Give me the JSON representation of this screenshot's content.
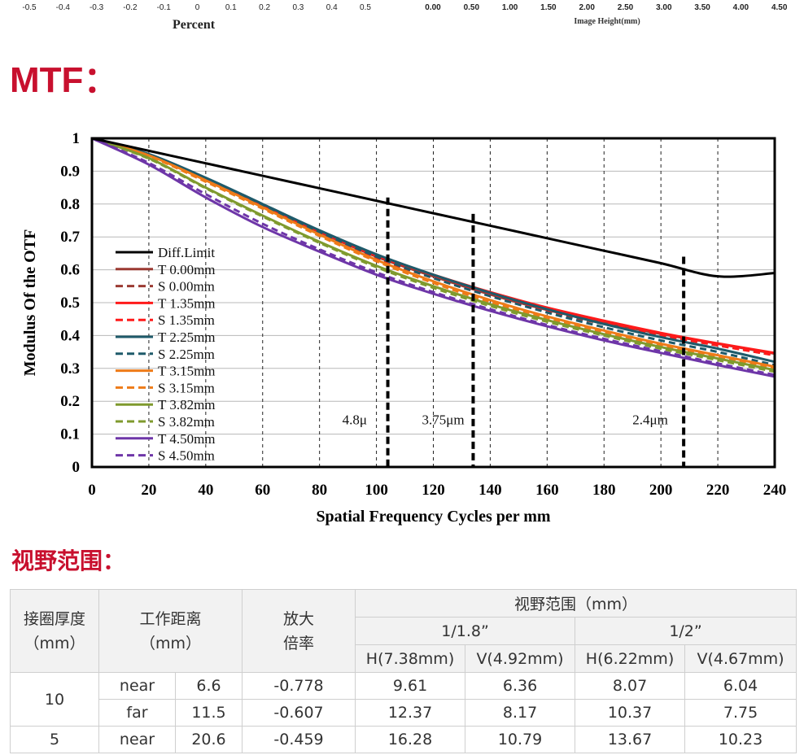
{
  "top_strip": {
    "left_ticks": [
      "-0.5",
      "-0.4",
      "-0.3",
      "-0.2",
      "-0.1",
      "0",
      "0.1",
      "0.2",
      "0.3",
      "0.4",
      "0.5"
    ],
    "left_title": "Percent",
    "right_ticks": [
      "0.00",
      "0.50",
      "1.00",
      "1.50",
      "2.00",
      "2.50",
      "3.00",
      "3.50",
      "4.00",
      "4.50"
    ],
    "right_title": "Image Height(mm)"
  },
  "mtf_heading": "MTF：",
  "chart_data": {
    "type": "line",
    "xlabel": "Spatial Frequency Cycles per mm",
    "ylabel": "Modulus Of the OTF",
    "xlim": [
      0,
      240
    ],
    "ylim": [
      0,
      1
    ],
    "x_ticks": [
      "0",
      "20",
      "40",
      "60",
      "80",
      "100",
      "120",
      "140",
      "160",
      "180",
      "200",
      "220",
      "240"
    ],
    "y_ticks": [
      "0",
      "0.1",
      "0.2",
      "0.3",
      "0.4",
      "0.5",
      "0.6",
      "0.7",
      "0.8",
      "0.9",
      "1"
    ],
    "grid": "horizontal solid, vertical dashed",
    "legend_placement": "left",
    "colors": {
      "diff": "#000000",
      "f0": "#9b3a32",
      "f135": "#ff1a1a",
      "f225": "#1e5a6a",
      "f315": "#ee7b18",
      "f382": "#7f9a2e",
      "f450": "#6e36a8"
    },
    "series": [
      {
        "name": "Diff.Limit",
        "color": "#000000",
        "dashed": false,
        "x": [
          0,
          20,
          40,
          60,
          80,
          100,
          120,
          140,
          160,
          180,
          200,
          220,
          240
        ],
        "y": [
          1.0,
          0.962,
          0.924,
          0.886,
          0.848,
          0.81,
          0.772,
          0.734,
          0.696,
          0.658,
          0.62,
          0.58,
          0.59
        ]
      },
      {
        "name": "T 0.00mm",
        "color": "#9b3a32",
        "dashed": false,
        "x": [
          0,
          20,
          40,
          60,
          80,
          100,
          120,
          140,
          160,
          180,
          200,
          220,
          240
        ],
        "y": [
          1.0,
          0.95,
          0.875,
          0.795,
          0.715,
          0.64,
          0.58,
          0.525,
          0.478,
          0.44,
          0.405,
          0.375,
          0.345
        ]
      },
      {
        "name": "S 0.00mm",
        "color": "#9b3a32",
        "dashed": true,
        "x": [
          0,
          20,
          40,
          60,
          80,
          100,
          120,
          140,
          160,
          180,
          200,
          220,
          240
        ],
        "y": [
          1.0,
          0.948,
          0.872,
          0.79,
          0.71,
          0.635,
          0.575,
          0.52,
          0.473,
          0.435,
          0.4,
          0.37,
          0.34
        ]
      },
      {
        "name": "T 1.35mm",
        "color": "#ff1a1a",
        "dashed": false,
        "x": [
          0,
          20,
          40,
          60,
          80,
          100,
          120,
          140,
          160,
          180,
          200,
          220,
          240
        ],
        "y": [
          1.0,
          0.95,
          0.877,
          0.797,
          0.717,
          0.643,
          0.585,
          0.532,
          0.485,
          0.445,
          0.408,
          0.376,
          0.347
        ]
      },
      {
        "name": "S 1.35mm",
        "color": "#ff1a1a",
        "dashed": true,
        "x": [
          0,
          20,
          40,
          60,
          80,
          100,
          120,
          140,
          160,
          180,
          200,
          220,
          240
        ],
        "y": [
          1.0,
          0.948,
          0.873,
          0.792,
          0.712,
          0.637,
          0.578,
          0.525,
          0.478,
          0.438,
          0.402,
          0.37,
          0.34
        ]
      },
      {
        "name": "T 2.25mm",
        "color": "#1e5a6a",
        "dashed": false,
        "x": [
          0,
          20,
          40,
          60,
          80,
          100,
          120,
          140,
          160,
          180,
          200,
          220,
          240
        ],
        "y": [
          1.0,
          0.952,
          0.88,
          0.8,
          0.72,
          0.647,
          0.585,
          0.53,
          0.48,
          0.435,
          0.395,
          0.36,
          0.32
        ]
      },
      {
        "name": "S 2.25mm",
        "color": "#1e5a6a",
        "dashed": true,
        "x": [
          0,
          20,
          40,
          60,
          80,
          100,
          120,
          140,
          160,
          180,
          200,
          220,
          240
        ],
        "y": [
          1.0,
          0.95,
          0.876,
          0.795,
          0.715,
          0.64,
          0.575,
          0.52,
          0.47,
          0.425,
          0.385,
          0.35,
          0.31
        ]
      },
      {
        "name": "T 3.15mm",
        "color": "#ee7b18",
        "dashed": false,
        "x": [
          0,
          20,
          40,
          60,
          80,
          100,
          120,
          140,
          160,
          180,
          200,
          220,
          240
        ],
        "y": [
          1.0,
          0.948,
          0.872,
          0.79,
          0.707,
          0.63,
          0.565,
          0.508,
          0.458,
          0.415,
          0.375,
          0.34,
          0.305
        ]
      },
      {
        "name": "S 3.15mm",
        "color": "#ee7b18",
        "dashed": true,
        "x": [
          0,
          20,
          40,
          60,
          80,
          100,
          120,
          140,
          160,
          180,
          200,
          220,
          240
        ],
        "y": [
          1.0,
          0.946,
          0.868,
          0.786,
          0.703,
          0.626,
          0.56,
          0.502,
          0.452,
          0.41,
          0.37,
          0.335,
          0.3
        ]
      },
      {
        "name": "T 3.82mm",
        "color": "#7f9a2e",
        "dashed": false,
        "x": [
          0,
          20,
          40,
          60,
          80,
          100,
          120,
          140,
          160,
          180,
          200,
          220,
          240
        ],
        "y": [
          1.0,
          0.94,
          0.85,
          0.765,
          0.685,
          0.612,
          0.55,
          0.495,
          0.447,
          0.404,
          0.365,
          0.33,
          0.295
        ]
      },
      {
        "name": "S 3.82mm",
        "color": "#7f9a2e",
        "dashed": true,
        "x": [
          0,
          20,
          40,
          60,
          80,
          100,
          120,
          140,
          160,
          180,
          200,
          220,
          240
        ],
        "y": [
          1.0,
          0.938,
          0.848,
          0.762,
          0.682,
          0.608,
          0.545,
          0.49,
          0.442,
          0.4,
          0.36,
          0.325,
          0.29
        ]
      },
      {
        "name": "T 4.50mm",
        "color": "#6e36a8",
        "dashed": false,
        "x": [
          0,
          20,
          40,
          60,
          80,
          100,
          120,
          140,
          160,
          180,
          200,
          220,
          240
        ],
        "y": [
          1.0,
          0.92,
          0.82,
          0.73,
          0.655,
          0.585,
          0.527,
          0.475,
          0.428,
          0.385,
          0.347,
          0.31,
          0.275
        ]
      },
      {
        "name": "S 4.50mm",
        "color": "#6e36a8",
        "dashed": true,
        "x": [
          0,
          20,
          40,
          60,
          80,
          100,
          120,
          140,
          160,
          180,
          200,
          220,
          240
        ],
        "y": [
          1.0,
          0.925,
          0.83,
          0.74,
          0.662,
          0.592,
          0.532,
          0.48,
          0.432,
          0.39,
          0.352,
          0.315,
          0.28
        ]
      }
    ],
    "markers": [
      {
        "x": 104,
        "y_top": 0.82,
        "label": "4.8μ",
        "label_x": 88,
        "label_y": 0.13
      },
      {
        "x": 134,
        "y_top": 0.77,
        "label": "3.75μm",
        "label_x": 116,
        "label_y": 0.13
      },
      {
        "x": 208,
        "y_top": 0.64,
        "label": "2.4μm",
        "label_x": 190,
        "label_y": 0.13
      }
    ]
  },
  "fov_heading": "视野范围：",
  "table": {
    "header": {
      "col1": [
        "接圈厚度",
        "（mm）"
      ],
      "col2": [
        "工作距离",
        "（mm）"
      ],
      "col3": [
        "放大",
        "倍率"
      ],
      "fov_title": "视野范围（mm）",
      "sensor_a": "1/1.8”",
      "sensor_b": "1/2”",
      "sub": [
        "H(7.38mm)",
        "V(4.92mm)",
        "H(6.22mm)",
        "V(4.67mm)"
      ]
    },
    "rows": [
      {
        "thickness": "10",
        "wd_label": "near",
        "wd": "6.6",
        "mag": "-0.778",
        "v": [
          "9.61",
          "6.36",
          "8.07",
          "6.04"
        ]
      },
      {
        "thickness": "",
        "wd_label": "far",
        "wd": "11.5",
        "mag": "-0.607",
        "v": [
          "12.37",
          "8.17",
          "10.37",
          "7.75"
        ]
      },
      {
        "thickness": "5",
        "wd_label": "near",
        "wd": "20.6",
        "mag": "-0.459",
        "v": [
          "16.28",
          "10.79",
          "13.67",
          "10.23"
        ]
      }
    ]
  }
}
